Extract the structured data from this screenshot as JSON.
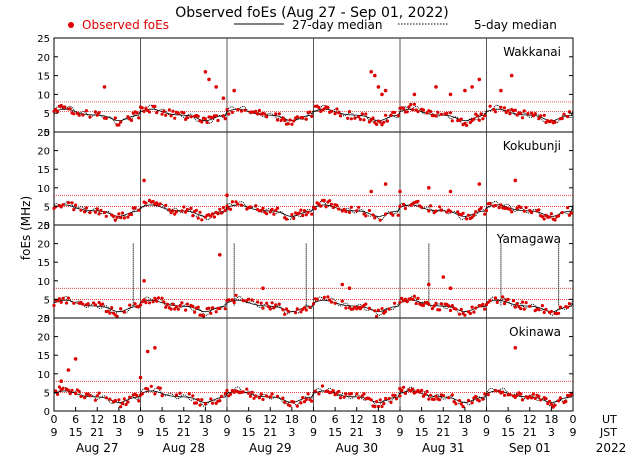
{
  "chart_data": {
    "type": "scatter",
    "title": "Observed foEs (Aug 27 - Sep 01, 2022)",
    "ylabel": "foEs (MHz)",
    "ylim": [
      0,
      25
    ],
    "yticks": [
      0,
      5,
      10,
      15,
      20,
      25
    ],
    "xlim_hours": [
      0,
      144
    ],
    "legend": {
      "observed": "Observed foEs",
      "median27": "27-day median",
      "median5": "5-day median"
    },
    "ut_row_label": "UT",
    "jst_row_label": "JST",
    "ut_ticks": [
      "0",
      "6",
      "12",
      "18",
      "0",
      "6",
      "12",
      "18",
      "0",
      "6",
      "12",
      "18",
      "0",
      "6",
      "12",
      "18",
      "0",
      "6",
      "12",
      "18",
      "0",
      "6",
      "12",
      "18",
      "0"
    ],
    "jst_ticks": [
      "9",
      "15",
      "21",
      "3",
      "9",
      "15",
      "21",
      "3",
      "9",
      "15",
      "21",
      "3",
      "9",
      "15",
      "21",
      "3",
      "9",
      "15",
      "21",
      "3",
      "9",
      "15",
      "21",
      "3",
      "9"
    ],
    "day_labels": [
      "Aug 27",
      "Aug 28",
      "Aug 29",
      "Aug 30",
      "Aug 31",
      "Sep 01"
    ],
    "year_label": "2022",
    "colors": {
      "observed": "#dd0000",
      "median": "#000000",
      "reference": "#dd0000",
      "day_line": "#555555"
    },
    "stations": [
      {
        "name": "Wakkanai",
        "reference_lines": [
          5.5,
          8
        ],
        "median27_base": 4.5,
        "outliers": [
          [
            14,
            12
          ],
          [
            42,
            16
          ],
          [
            43,
            14
          ],
          [
            45,
            12
          ],
          [
            47,
            9
          ],
          [
            50,
            11
          ],
          [
            88,
            16
          ],
          [
            89,
            15
          ],
          [
            90,
            12
          ],
          [
            91,
            10
          ],
          [
            92,
            11
          ],
          [
            100,
            10
          ],
          [
            106,
            12
          ],
          [
            110,
            10
          ],
          [
            114,
            11
          ],
          [
            116,
            12
          ],
          [
            118,
            14
          ],
          [
            124,
            11
          ],
          [
            127,
            15
          ]
        ],
        "spikes": []
      },
      {
        "name": "Kokubunji",
        "reference_lines": [
          5,
          8
        ],
        "median27_base": 3.8,
        "outliers": [
          [
            25,
            12
          ],
          [
            88,
            9
          ],
          [
            92,
            11
          ],
          [
            104,
            10
          ],
          [
            110,
            9
          ],
          [
            118,
            11
          ],
          [
            128,
            12
          ],
          [
            48,
            8
          ],
          [
            96,
            9
          ]
        ],
        "spikes": []
      },
      {
        "name": "Yamagawa",
        "reference_lines": [
          5,
          8
        ],
        "median27_base": 3.2,
        "outliers": [
          [
            25,
            10
          ],
          [
            46,
            17
          ],
          [
            58,
            8
          ],
          [
            80,
            9
          ],
          [
            82,
            8
          ],
          [
            104,
            9
          ],
          [
            108,
            11
          ],
          [
            110,
            8
          ]
        ],
        "spikes": [
          [
            22,
            20
          ],
          [
            50,
            20
          ],
          [
            70,
            20
          ],
          [
            104,
            20
          ],
          [
            124,
            20
          ],
          [
            140,
            20
          ]
        ]
      },
      {
        "name": "Okinawa",
        "reference_lines": [
          5,
          8
        ],
        "median27_base": 3.8,
        "outliers": [
          [
            2,
            8
          ],
          [
            4,
            11
          ],
          [
            6,
            14
          ],
          [
            24,
            9
          ],
          [
            26,
            16
          ],
          [
            28,
            17
          ],
          [
            96,
            6
          ],
          [
            128,
            17
          ]
        ],
        "spikes": []
      }
    ]
  }
}
